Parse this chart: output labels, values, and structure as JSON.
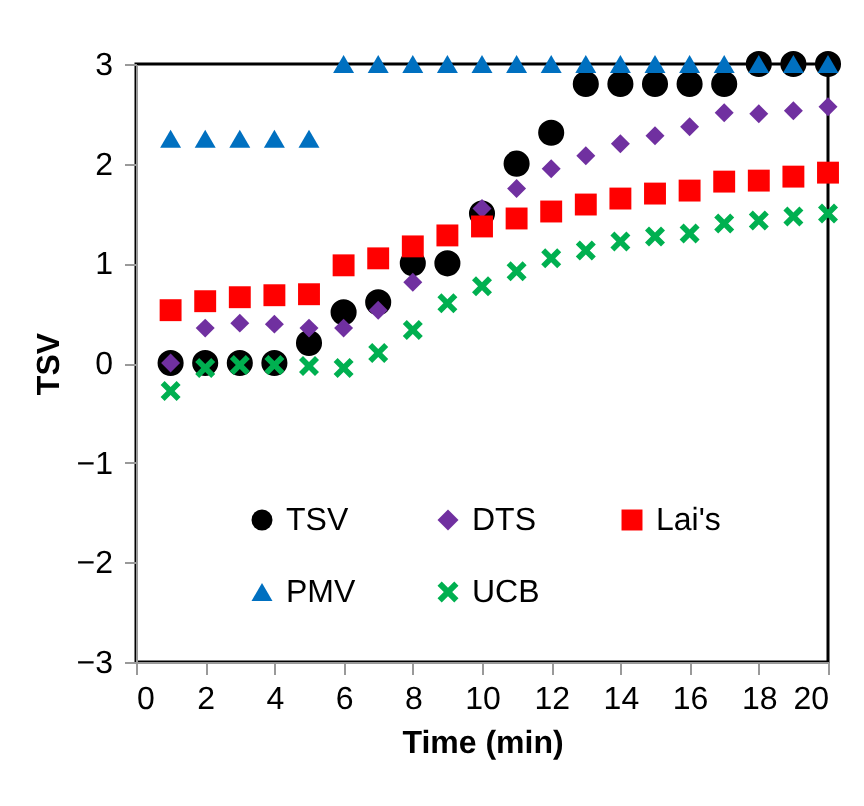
{
  "chart_data": {
    "type": "scatter",
    "xlabel": "Time (min)",
    "ylabel": "TSV",
    "x": [
      1,
      2,
      3,
      4,
      5,
      6,
      7,
      8,
      9,
      10,
      11,
      12,
      13,
      14,
      15,
      16,
      17,
      18,
      19,
      20
    ],
    "xlim": [
      0,
      20
    ],
    "xticks": [
      0,
      2,
      4,
      6,
      8,
      10,
      12,
      14,
      16,
      18,
      20
    ],
    "ylim": [
      -3,
      3
    ],
    "yticks": [
      -3,
      -2,
      -1,
      0,
      1,
      2,
      3
    ],
    "grid": false,
    "legend": "bottom",
    "series": [
      {
        "name": "TSV",
        "color": "#000000",
        "marker": "circle",
        "values": [
          0,
          0,
          0,
          0,
          0.2,
          0.51,
          0.61,
          1.0,
          1.0,
          1.5,
          2.0,
          2.31,
          2.8,
          2.8,
          2.8,
          2.8,
          2.8,
          3.0,
          3.0,
          3.0
        ]
      },
      {
        "name": "DTS",
        "color": "#7030a0",
        "marker": "diamond",
        "values": [
          0,
          0.35,
          0.4,
          0.39,
          0.35,
          0.35,
          0.53,
          0.81,
          null,
          1.55,
          1.75,
          1.95,
          2.08,
          2.2,
          2.28,
          2.37,
          2.51,
          2.5,
          2.53,
          2.57
        ]
      },
      {
        "name": "Lai's",
        "color": "#ff0000",
        "marker": "square",
        "values": [
          0.53,
          0.62,
          0.66,
          0.68,
          0.69,
          0.98,
          1.05,
          1.17,
          1.28,
          1.37,
          1.45,
          1.52,
          1.59,
          1.65,
          1.7,
          1.73,
          1.82,
          1.83,
          1.87,
          1.91
        ]
      },
      {
        "name": "PMV",
        "color": "#0070c0",
        "marker": "triangle",
        "values": [
          2.25,
          2.25,
          2.25,
          2.25,
          2.25,
          3,
          3,
          3,
          3,
          3,
          3,
          3,
          3,
          3,
          3,
          3,
          3,
          3,
          3,
          3
        ]
      },
      {
        "name": "UCB",
        "color": "#00b050",
        "marker": "cross",
        "values": [
          -0.28,
          -0.05,
          -0.02,
          -0.02,
          -0.03,
          -0.05,
          0.1,
          0.33,
          0.6,
          0.77,
          0.92,
          1.05,
          1.13,
          1.22,
          1.27,
          1.3,
          1.4,
          1.43,
          1.47,
          1.5
        ]
      }
    ]
  }
}
